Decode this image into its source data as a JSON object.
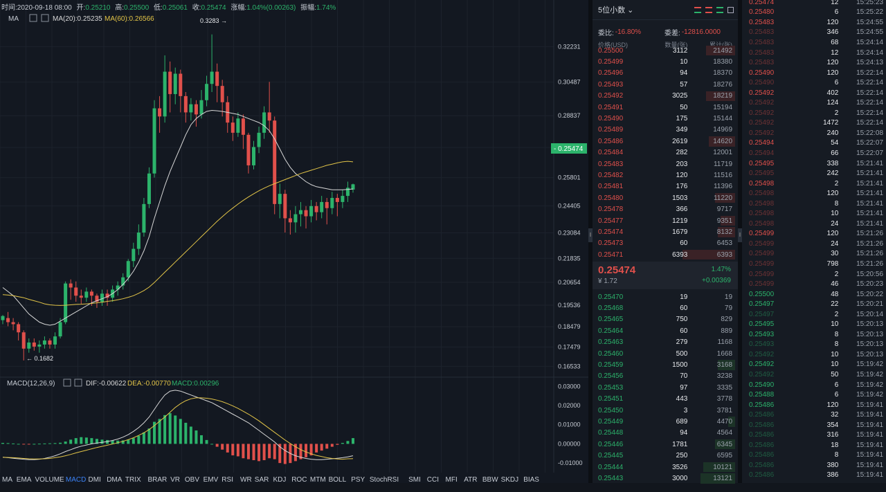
{
  "info_bar": {
    "time_label": "时间:",
    "time": "2020-09-18 08:00",
    "open_label": "开:",
    "open": "0.25210",
    "high_label": "高:",
    "high": "0.25500",
    "low_label": "低:",
    "low": "0.25061",
    "close_label": "收:",
    "close": "0.25474",
    "chg_label": "涨幅:",
    "chg": "1.04%(0.00263)",
    "amp_label": "振幅:",
    "amp": "1.74%"
  },
  "ma_legend": {
    "name": "MA",
    "ma20": "MA(20):0.25235",
    "ma60": "MA(60):0.26566"
  },
  "macd_legend": {
    "name": "MACD(12,26,9)",
    "dif": "DIF:-0.00622",
    "dea": "DEA:-0.00770",
    "macd": "MACD:0.00296"
  },
  "colors": {
    "up": "#2cb36b",
    "down": "#e1504b",
    "ma20": "#d8d8d8",
    "ma60": "#e3c548",
    "bg": "#131821"
  },
  "price_axis": [
    "0.32231",
    "0.30487",
    "0.28837",
    "0.27277",
    "0.25801",
    "0.24405",
    "0.23084",
    "0.21835",
    "0.20654",
    "0.19536",
    "0.18479",
    "0.17479",
    "0.16533"
  ],
  "macd_axis": [
    "0.03000",
    "0.02000",
    "0.01000",
    "0.00000",
    "-0.01000"
  ],
  "current_price_tag": "0.25474",
  "high_marker": "0.3283",
  "low_marker": "0.1682",
  "indicator_tabs": [
    "MA",
    "EMA",
    "VOLUME",
    "MACD",
    "DMI",
    "DMA",
    "TRIX",
    "BRAR",
    "VR",
    "OBV",
    "EMV",
    "RSI",
    "WR",
    "SAR",
    "KDJ",
    "ROC",
    "MTM",
    "BOLL",
    "PSY",
    "StochRSI",
    "SMI",
    "CCI",
    "MFI",
    "ATR",
    "BBW",
    "SKDJ",
    "BIAS"
  ],
  "active_tab": "MACD",
  "chart_data": {
    "type": "candlestick",
    "y_range": [
      0.16533,
      0.32231
    ],
    "candles": [
      [
        0.188,
        0.19,
        0.186,
        0.1905
      ],
      [
        0.189,
        0.187,
        0.185,
        0.192
      ],
      [
        0.187,
        0.186,
        0.183,
        0.189
      ],
      [
        0.186,
        0.182,
        0.178,
        0.187
      ],
      [
        0.182,
        0.174,
        0.1682,
        0.183
      ],
      [
        0.174,
        0.177,
        0.172,
        0.179
      ],
      [
        0.177,
        0.175,
        0.173,
        0.179
      ],
      [
        0.175,
        0.176,
        0.172,
        0.178
      ],
      [
        0.176,
        0.178,
        0.174,
        0.18
      ],
      [
        0.178,
        0.176,
        0.174,
        0.179
      ],
      [
        0.176,
        0.18,
        0.174,
        0.182
      ],
      [
        0.18,
        0.187,
        0.179,
        0.189
      ],
      [
        0.187,
        0.206,
        0.186,
        0.207
      ],
      [
        0.206,
        0.204,
        0.198,
        0.208
      ],
      [
        0.204,
        0.2,
        0.197,
        0.207
      ],
      [
        0.2,
        0.199,
        0.196,
        0.203
      ],
      [
        0.199,
        0.202,
        0.197,
        0.204
      ],
      [
        0.202,
        0.2,
        0.195,
        0.203
      ],
      [
        0.2,
        0.197,
        0.194,
        0.201
      ],
      [
        0.197,
        0.201,
        0.195,
        0.203
      ],
      [
        0.201,
        0.199,
        0.195,
        0.203
      ],
      [
        0.199,
        0.203,
        0.197,
        0.205
      ],
      [
        0.203,
        0.205,
        0.2,
        0.207
      ],
      [
        0.205,
        0.209,
        0.203,
        0.211
      ],
      [
        0.209,
        0.217,
        0.207,
        0.218
      ],
      [
        0.217,
        0.223,
        0.214,
        0.226
      ],
      [
        0.223,
        0.231,
        0.22,
        0.235
      ],
      [
        0.231,
        0.245,
        0.229,
        0.248
      ],
      [
        0.245,
        0.26,
        0.243,
        0.263
      ],
      [
        0.26,
        0.292,
        0.258,
        0.296
      ],
      [
        0.292,
        0.288,
        0.28,
        0.298
      ],
      [
        0.288,
        0.31,
        0.285,
        0.318
      ],
      [
        0.31,
        0.299,
        0.29,
        0.315
      ],
      [
        0.299,
        0.309,
        0.294,
        0.312
      ],
      [
        0.309,
        0.298,
        0.29,
        0.311
      ],
      [
        0.298,
        0.29,
        0.285,
        0.3
      ],
      [
        0.29,
        0.294,
        0.286,
        0.297
      ],
      [
        0.294,
        0.289,
        0.283,
        0.296
      ],
      [
        0.289,
        0.296,
        0.287,
        0.301
      ],
      [
        0.296,
        0.304,
        0.293,
        0.308
      ],
      [
        0.304,
        0.31,
        0.3,
        0.3283
      ],
      [
        0.31,
        0.303,
        0.295,
        0.314
      ],
      [
        0.303,
        0.295,
        0.288,
        0.306
      ],
      [
        0.295,
        0.285,
        0.28,
        0.298
      ],
      [
        0.285,
        0.28,
        0.276,
        0.288
      ],
      [
        0.28,
        0.287,
        0.278,
        0.29
      ],
      [
        0.287,
        0.279,
        0.272,
        0.289
      ],
      [
        0.279,
        0.264,
        0.26,
        0.28
      ],
      [
        0.264,
        0.273,
        0.262,
        0.276
      ],
      [
        0.273,
        0.28,
        0.27,
        0.283
      ],
      [
        0.28,
        0.29,
        0.277,
        0.293
      ],
      [
        0.29,
        0.286,
        0.28,
        0.305
      ],
      [
        0.286,
        0.245,
        0.24,
        0.288
      ],
      [
        0.245,
        0.25,
        0.238,
        0.255
      ],
      [
        0.25,
        0.238,
        0.231,
        0.252
      ],
      [
        0.238,
        0.236,
        0.23,
        0.242
      ],
      [
        0.236,
        0.24,
        0.231,
        0.244
      ],
      [
        0.24,
        0.242,
        0.234,
        0.246
      ],
      [
        0.242,
        0.239,
        0.233,
        0.244
      ],
      [
        0.239,
        0.244,
        0.236,
        0.247
      ],
      [
        0.244,
        0.241,
        0.237,
        0.246
      ],
      [
        0.241,
        0.246,
        0.238,
        0.249
      ],
      [
        0.246,
        0.243,
        0.235,
        0.248
      ],
      [
        0.243,
        0.248,
        0.24,
        0.251
      ],
      [
        0.248,
        0.246,
        0.239,
        0.25
      ],
      [
        0.246,
        0.249,
        0.243,
        0.252
      ],
      [
        0.249,
        0.253,
        0.246,
        0.256
      ],
      [
        0.2521,
        0.2547,
        0.2506,
        0.255
      ]
    ],
    "ma20": [
      0.204,
      0.202,
      0.2,
      0.197,
      0.194,
      0.191,
      0.189,
      0.187,
      0.186,
      0.1855,
      0.186,
      0.1875,
      0.189,
      0.1905,
      0.192,
      0.1935,
      0.195,
      0.1965,
      0.1975,
      0.1985,
      0.1995,
      0.201,
      0.203,
      0.2055,
      0.2085,
      0.212,
      0.2165,
      0.222,
      0.229,
      0.238,
      0.246,
      0.254,
      0.261,
      0.267,
      0.273,
      0.279,
      0.284,
      0.287,
      0.289,
      0.2905,
      0.291,
      0.2908,
      0.2905,
      0.29,
      0.2895,
      0.289,
      0.288,
      0.287,
      0.286,
      0.285,
      0.2835,
      0.281,
      0.277,
      0.272,
      0.267,
      0.263,
      0.26,
      0.258,
      0.256,
      0.2545,
      0.2535,
      0.253,
      0.2525,
      0.252,
      0.252,
      0.252,
      0.2522,
      0.2524
    ],
    "ma60": [
      0.2005,
      0.2003,
      0.2,
      0.1995,
      0.199,
      0.1982,
      0.1975,
      0.1968,
      0.196,
      0.1955,
      0.1953,
      0.1952,
      0.1953,
      0.1955,
      0.1957,
      0.1958,
      0.196,
      0.1962,
      0.1965,
      0.1968,
      0.1972,
      0.1975,
      0.198,
      0.1985,
      0.1992,
      0.2,
      0.2012,
      0.2025,
      0.2042,
      0.2065,
      0.209,
      0.2115,
      0.214,
      0.2165,
      0.219,
      0.2215,
      0.224,
      0.2265,
      0.229,
      0.2315,
      0.234,
      0.2365,
      0.2388,
      0.241,
      0.243,
      0.245,
      0.2468,
      0.2485,
      0.25,
      0.2515,
      0.2528,
      0.254,
      0.255,
      0.256,
      0.257,
      0.258,
      0.259,
      0.26,
      0.2608,
      0.2616,
      0.2624,
      0.2632,
      0.264,
      0.2646,
      0.2652,
      0.2657,
      0.266,
      0.2657
    ],
    "macd_range": [
      -0.015,
      0.033
    ],
    "macd_hist": [
      0.0005,
      0.0004,
      0.0002,
      0.0,
      -0.0002,
      -0.0001,
      0.0,
      0.0001,
      0.0002,
      0.0003,
      0.0004,
      0.0006,
      0.0012,
      0.0022,
      0.003,
      0.0035,
      0.0033,
      0.003,
      0.0026,
      0.0022,
      0.002,
      0.0018,
      0.0017,
      0.0018,
      0.0022,
      0.003,
      0.0042,
      0.006,
      0.008,
      0.0115,
      0.013,
      0.015,
      0.016,
      0.0148,
      0.013,
      0.011,
      0.009,
      0.007,
      0.0045,
      0.002,
      0.0,
      -0.0015,
      -0.003,
      -0.0045,
      -0.006,
      -0.0065,
      -0.0075,
      -0.008,
      -0.0085,
      -0.009,
      -0.0085,
      -0.0075,
      -0.008,
      -0.01,
      -0.0105,
      -0.01,
      -0.009,
      -0.008,
      -0.007,
      -0.006,
      -0.0045,
      -0.0035,
      -0.0025,
      -0.0015,
      -0.0005,
      0.0005,
      0.0015,
      0.003
    ],
    "dif": [
      -0.007,
      -0.0072,
      -0.0075,
      -0.0078,
      -0.008,
      -0.0082,
      -0.0082,
      -0.008,
      -0.0076,
      -0.007,
      -0.0062,
      -0.0052,
      -0.004,
      -0.003,
      -0.002,
      -0.0012,
      -0.0006,
      0.0,
      0.0004,
      0.0008,
      0.0012,
      0.0018,
      0.0025,
      0.0035,
      0.0048,
      0.0065,
      0.0085,
      0.011,
      0.014,
      0.018,
      0.022,
      0.0255,
      0.0275,
      0.028,
      0.0275,
      0.0265,
      0.0255,
      0.0245,
      0.0235,
      0.0225,
      0.0215,
      0.02,
      0.0185,
      0.017,
      0.0155,
      0.014,
      0.0125,
      0.011,
      0.009,
      0.007,
      0.005,
      0.003,
      0.001,
      -0.0015,
      -0.0035,
      -0.005,
      -0.0062,
      -0.007,
      -0.0076,
      -0.008,
      -0.0082,
      -0.0082,
      -0.008,
      -0.0078,
      -0.0075,
      -0.0072,
      -0.0068,
      -0.0062
    ],
    "dea": [
      -0.007,
      -0.0071,
      -0.0072,
      -0.0074,
      -0.0076,
      -0.0078,
      -0.0079,
      -0.0079,
      -0.0078,
      -0.0076,
      -0.0072,
      -0.0068,
      -0.0062,
      -0.0055,
      -0.0047,
      -0.004,
      -0.0033,
      -0.0026,
      -0.0019,
      -0.0013,
      -0.0007,
      -0.0001,
      0.0006,
      0.0013,
      0.0022,
      0.0032,
      0.0044,
      0.0058,
      0.0075,
      0.0095,
      0.0118,
      0.014,
      0.0165,
      0.019,
      0.021,
      0.0225,
      0.0235,
      0.024,
      0.024,
      0.0238,
      0.0234,
      0.0228,
      0.022,
      0.021,
      0.0198,
      0.0185,
      0.017,
      0.0155,
      0.0138,
      0.012,
      0.01,
      0.008,
      0.006,
      0.004,
      0.002,
      0.0002,
      -0.0015,
      -0.003,
      -0.0042,
      -0.0052,
      -0.006,
      -0.0066,
      -0.0072,
      -0.0076,
      -0.0079,
      -0.008,
      -0.0078,
      -0.0077
    ]
  },
  "orderbook": {
    "precision": "5位小数",
    "ratio_label": "委比:",
    "ratio": "-16.80%",
    "diff_label": "委差:",
    "diff": "-12816.0000",
    "col_price": "价格(USD)",
    "col_qty": "数量(张)",
    "col_total": "累计(张)",
    "asks": [
      [
        "0.25500",
        "3112",
        "21492",
        0.2
      ],
      [
        "0.25499",
        "10",
        "18380",
        0
      ],
      [
        "0.25496",
        "94",
        "18370",
        0
      ],
      [
        "0.25493",
        "57",
        "18276",
        0
      ],
      [
        "0.25492",
        "3025",
        "18219",
        0.2
      ],
      [
        "0.25491",
        "50",
        "15194",
        0
      ],
      [
        "0.25490",
        "175",
        "15144",
        0
      ],
      [
        "0.25489",
        "349",
        "14969",
        0
      ],
      [
        "0.25486",
        "2619",
        "14620",
        0.18
      ],
      [
        "0.25484",
        "282",
        "12001",
        0
      ],
      [
        "0.25483",
        "203",
        "11719",
        0
      ],
      [
        "0.25482",
        "120",
        "11516",
        0
      ],
      [
        "0.25481",
        "176",
        "11396",
        0
      ],
      [
        "0.25480",
        "1503",
        "11220",
        0.14
      ],
      [
        "0.25478",
        "366",
        "9717",
        0
      ],
      [
        "0.25477",
        "1219",
        "9351",
        0.1
      ],
      [
        "0.25474",
        "1679",
        "8132",
        0.12
      ],
      [
        "0.25473",
        "60",
        "6453",
        0
      ],
      [
        "0.25471",
        "6393",
        "6393",
        0.36
      ]
    ],
    "last_price": "0.25474",
    "last_cny": "¥ 1.72",
    "last_pct": "1.47%",
    "last_chg": "+0.00369",
    "bids": [
      [
        "0.25470",
        "19",
        "19",
        0
      ],
      [
        "0.25468",
        "60",
        "79",
        0
      ],
      [
        "0.25465",
        "750",
        "829",
        0
      ],
      [
        "0.25464",
        "60",
        "889",
        0
      ],
      [
        "0.25463",
        "279",
        "1168",
        0
      ],
      [
        "0.25460",
        "500",
        "1668",
        0
      ],
      [
        "0.25459",
        "1500",
        "3168",
        0.12
      ],
      [
        "0.25456",
        "70",
        "3238",
        0
      ],
      [
        "0.25453",
        "97",
        "3335",
        0
      ],
      [
        "0.25451",
        "443",
        "3778",
        0
      ],
      [
        "0.25450",
        "3",
        "3781",
        0
      ],
      [
        "0.25449",
        "689",
        "4470",
        0.05
      ],
      [
        "0.25448",
        "94",
        "4564",
        0
      ],
      [
        "0.25446",
        "1781",
        "6345",
        0.14
      ],
      [
        "0.25445",
        "250",
        "6595",
        0
      ],
      [
        "0.25444",
        "3526",
        "10121",
        0.22
      ],
      [
        "0.25443",
        "3000",
        "13121",
        0.24
      ]
    ]
  },
  "trades": [
    [
      "0.25474",
      "12",
      "15:25:23",
      "s",
      1
    ],
    [
      "0.25480",
      "6",
      "15:25:22",
      "s",
      1
    ],
    [
      "0.25483",
      "120",
      "15:24:55",
      "s",
      1
    ],
    [
      "0.25483",
      "346",
      "15:24:55",
      "s",
      0
    ],
    [
      "0.25483",
      "68",
      "15:24:14",
      "s",
      0
    ],
    [
      "0.25483",
      "12",
      "15:24:14",
      "s",
      0
    ],
    [
      "0.25483",
      "120",
      "15:24:13",
      "s",
      0
    ],
    [
      "0.25490",
      "120",
      "15:22:14",
      "s",
      1
    ],
    [
      "0.25490",
      "6",
      "15:22:14",
      "s",
      0
    ],
    [
      "0.25492",
      "402",
      "15:22:14",
      "s",
      1
    ],
    [
      "0.25492",
      "124",
      "15:22:14",
      "s",
      0
    ],
    [
      "0.25492",
      "2",
      "15:22:14",
      "s",
      0
    ],
    [
      "0.25492",
      "1472",
      "15:22:14",
      "s",
      0
    ],
    [
      "0.25492",
      "240",
      "15:22:08",
      "s",
      0
    ],
    [
      "0.25494",
      "54",
      "15:22:07",
      "s",
      1
    ],
    [
      "0.25494",
      "66",
      "15:22:07",
      "s",
      0
    ],
    [
      "0.25495",
      "338",
      "15:21:41",
      "s",
      1
    ],
    [
      "0.25495",
      "242",
      "15:21:41",
      "s",
      0
    ],
    [
      "0.25498",
      "2",
      "15:21:41",
      "s",
      1
    ],
    [
      "0.25498",
      "120",
      "15:21:41",
      "s",
      0
    ],
    [
      "0.25498",
      "8",
      "15:21:41",
      "s",
      0
    ],
    [
      "0.25498",
      "10",
      "15:21:41",
      "s",
      0
    ],
    [
      "0.25498",
      "24",
      "15:21:41",
      "s",
      0
    ],
    [
      "0.25499",
      "120",
      "15:21:26",
      "s",
      1
    ],
    [
      "0.25499",
      "24",
      "15:21:26",
      "s",
      0
    ],
    [
      "0.25499",
      "30",
      "15:21:26",
      "s",
      0
    ],
    [
      "0.25499",
      "798",
      "15:21:26",
      "s",
      0
    ],
    [
      "0.25499",
      "2",
      "15:20:56",
      "s",
      0
    ],
    [
      "0.25499",
      "46",
      "15:20:23",
      "s",
      0
    ],
    [
      "0.25500",
      "48",
      "15:20:22",
      "b",
      1
    ],
    [
      "0.25497",
      "22",
      "15:20:21",
      "b",
      1
    ],
    [
      "0.25497",
      "2",
      "15:20:14",
      "b",
      0
    ],
    [
      "0.25495",
      "10",
      "15:20:13",
      "b",
      1
    ],
    [
      "0.25493",
      "8",
      "15:20:13",
      "b",
      1
    ],
    [
      "0.25493",
      "8",
      "15:20:13",
      "b",
      0
    ],
    [
      "0.25492",
      "10",
      "15:20:13",
      "b",
      0
    ],
    [
      "0.25492",
      "10",
      "15:19:42",
      "b",
      1
    ],
    [
      "0.25492",
      "50",
      "15:19:42",
      "b",
      0
    ],
    [
      "0.25490",
      "6",
      "15:19:42",
      "b",
      1
    ],
    [
      "0.25488",
      "6",
      "15:19:42",
      "b",
      1
    ],
    [
      "0.25486",
      "120",
      "15:19:41",
      "b",
      1
    ],
    [
      "0.25486",
      "32",
      "15:19:41",
      "b",
      0
    ],
    [
      "0.25486",
      "354",
      "15:19:41",
      "b",
      0
    ],
    [
      "0.25486",
      "316",
      "15:19:41",
      "b",
      0
    ],
    [
      "0.25486",
      "18",
      "15:19:41",
      "b",
      0
    ],
    [
      "0.25486",
      "8",
      "15:19:41",
      "b",
      0
    ],
    [
      "0.25486",
      "380",
      "15:19:41",
      "b",
      0
    ],
    [
      "0.25486",
      "386",
      "15:19:41",
      "b",
      0
    ]
  ]
}
